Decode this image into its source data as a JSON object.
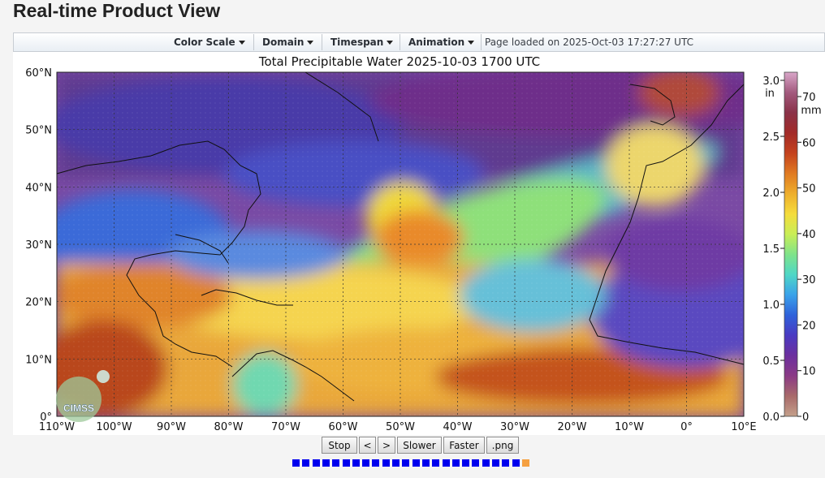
{
  "page": {
    "title": "Real-time Product View"
  },
  "menu": {
    "items": [
      {
        "label": "Color Scale",
        "name": "color-scale-menu"
      },
      {
        "label": "Domain",
        "name": "domain-menu"
      },
      {
        "label": "Timespan",
        "name": "timespan-menu"
      },
      {
        "label": "Animation",
        "name": "animation-menu"
      }
    ],
    "page_loaded": "Page loaded on 2025-Oct-03 17:27:27 UTC"
  },
  "map": {
    "title": "Total Precipitable Water  2025-10-03 1700 UTC",
    "logo_text": "CIMSS",
    "lat_labels": [
      "60°N",
      "50°N",
      "40°N",
      "30°N",
      "20°N",
      "10°N",
      "0°"
    ],
    "lon_labels": [
      "110°W",
      "100°W",
      "90°W",
      "80°W",
      "70°W",
      "60°W",
      "50°W",
      "40°W",
      "30°W",
      "20°W",
      "10°W",
      "0°",
      "10°E"
    ]
  },
  "colorbar": {
    "in_unit": "in",
    "mm_unit": "mm",
    "in_labels": [
      "3.0",
      "2.5",
      "2.0",
      "1.5",
      "1.0",
      "0.5",
      "0.0"
    ],
    "mm_labels": [
      "70",
      "60",
      "50",
      "40",
      "30",
      "20",
      "10",
      "0"
    ],
    "colors": [
      "#d9a7c9",
      "#a35a7e",
      "#8a3248",
      "#a22a28",
      "#c4421e",
      "#e07a22",
      "#eeae2c",
      "#f5dc3c",
      "#c9ee56",
      "#7fe38a",
      "#4fd7c6",
      "#3aa2ea",
      "#2f62da",
      "#4a3ac2",
      "#6c2f9e",
      "#8b3a86",
      "#a86a6a",
      "#c4a08a"
    ]
  },
  "controls": {
    "stop": "Stop",
    "prev": "<",
    "next": ">",
    "slower": "Slower",
    "faster": "Faster",
    "png": ".png"
  },
  "animation": {
    "frame_count": 24,
    "current_frame": 24
  },
  "colors": {
    "frame_marker": "#0000ee",
    "current_frame_marker": "#f5a040"
  }
}
